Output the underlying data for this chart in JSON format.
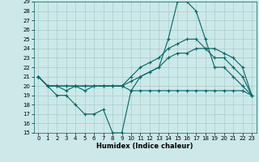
{
  "title": "",
  "xlabel": "Humidex (Indice chaleur)",
  "bg_color": "#cce8e8",
  "line_color": "#006666",
  "grid_color": "#aacccc",
  "ylim": [
    15,
    29
  ],
  "xlim": [
    -0.5,
    23.5
  ],
  "yticks": [
    15,
    16,
    17,
    18,
    19,
    20,
    21,
    22,
    23,
    24,
    25,
    26,
    27,
    28,
    29
  ],
  "xticks": [
    0,
    1,
    2,
    3,
    4,
    5,
    6,
    7,
    8,
    9,
    10,
    11,
    12,
    13,
    14,
    15,
    16,
    17,
    18,
    19,
    20,
    21,
    22,
    23
  ],
  "lines": [
    {
      "x": [
        0,
        1,
        2,
        3,
        4,
        5,
        6,
        7,
        8,
        9,
        10,
        11,
        12,
        13,
        14,
        15,
        16,
        17,
        18,
        19,
        20,
        21,
        22,
        23
      ],
      "y": [
        21,
        20,
        19,
        19,
        18,
        17,
        17,
        17.5,
        15,
        15,
        19.5,
        21,
        21.5,
        22,
        25,
        29,
        29,
        28,
        25,
        22,
        22,
        21,
        20,
        19
      ]
    },
    {
      "x": [
        0,
        1,
        2,
        3,
        4,
        5,
        6,
        7,
        8,
        9,
        10,
        11,
        12,
        13,
        14,
        15,
        16,
        17,
        18,
        19,
        20,
        21,
        22,
        23
      ],
      "y": [
        21,
        20,
        20,
        19.5,
        20,
        19.5,
        20,
        20,
        20,
        20,
        19.5,
        19.5,
        19.5,
        19.5,
        19.5,
        19.5,
        19.5,
        19.5,
        19.5,
        19.5,
        19.5,
        19.5,
        19.5,
        19
      ]
    },
    {
      "x": [
        0,
        1,
        2,
        3,
        4,
        5,
        6,
        7,
        8,
        9,
        10,
        11,
        12,
        13,
        14,
        15,
        16,
        17,
        18,
        19,
        20,
        21,
        22,
        23
      ],
      "y": [
        21,
        20,
        20,
        20,
        20,
        20,
        20,
        20,
        20,
        20,
        20.5,
        21,
        21.5,
        22,
        23,
        23.5,
        23.5,
        24,
        24,
        23,
        23,
        22,
        21,
        19
      ]
    },
    {
      "x": [
        0,
        1,
        2,
        3,
        4,
        5,
        6,
        7,
        8,
        9,
        10,
        11,
        12,
        13,
        14,
        15,
        16,
        17,
        18,
        19,
        20,
        21,
        22,
        23
      ],
      "y": [
        21,
        20,
        20,
        20,
        20,
        20,
        20,
        20,
        20,
        20,
        21,
        22,
        22.5,
        23,
        24,
        24.5,
        25,
        25,
        24,
        24,
        23.5,
        23,
        22,
        19
      ]
    }
  ]
}
